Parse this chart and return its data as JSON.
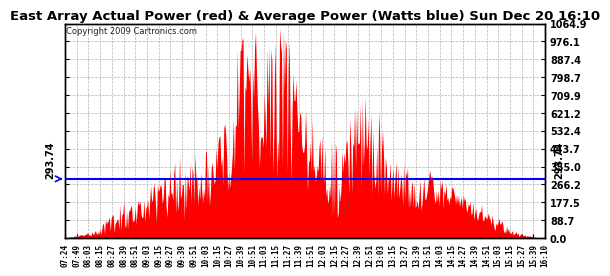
{
  "title": "East Array Actual Power (red) & Average Power (Watts blue) Sun Dec 20 16:10",
  "copyright": "Copyright 2009 Cartronics.com",
  "avg_power": 293.74,
  "ymax": 1064.9,
  "ymin": 0.0,
  "yticks": [
    0.0,
    88.7,
    177.5,
    266.2,
    355.0,
    443.7,
    532.4,
    621.2,
    709.9,
    798.7,
    887.4,
    976.1,
    1064.9
  ],
  "ytick_labels": [
    "0.0",
    "88.7",
    "177.5",
    "266.2",
    "355.0",
    "443.7",
    "532.4",
    "621.2",
    "709.9",
    "798.7",
    "887.4",
    "976.1",
    "1064.9"
  ],
  "bg_color": "#ffffff",
  "fill_color": "#ff0000",
  "line_color": "#0000ff",
  "grid_color": "#aaaaaa",
  "avg_label": "293.74",
  "xtick_labels": [
    "07:24",
    "07:49",
    "08:03",
    "08:15",
    "08:27",
    "08:39",
    "08:51",
    "09:03",
    "09:15",
    "09:27",
    "09:39",
    "09:51",
    "10:03",
    "10:15",
    "10:27",
    "10:39",
    "10:51",
    "11:03",
    "11:15",
    "11:27",
    "11:39",
    "11:51",
    "12:03",
    "12:15",
    "12:27",
    "12:39",
    "12:51",
    "13:03",
    "13:15",
    "13:27",
    "13:39",
    "13:51",
    "14:03",
    "14:15",
    "14:27",
    "14:39",
    "14:51",
    "15:03",
    "15:15",
    "15:27",
    "15:39",
    "16:10"
  ]
}
